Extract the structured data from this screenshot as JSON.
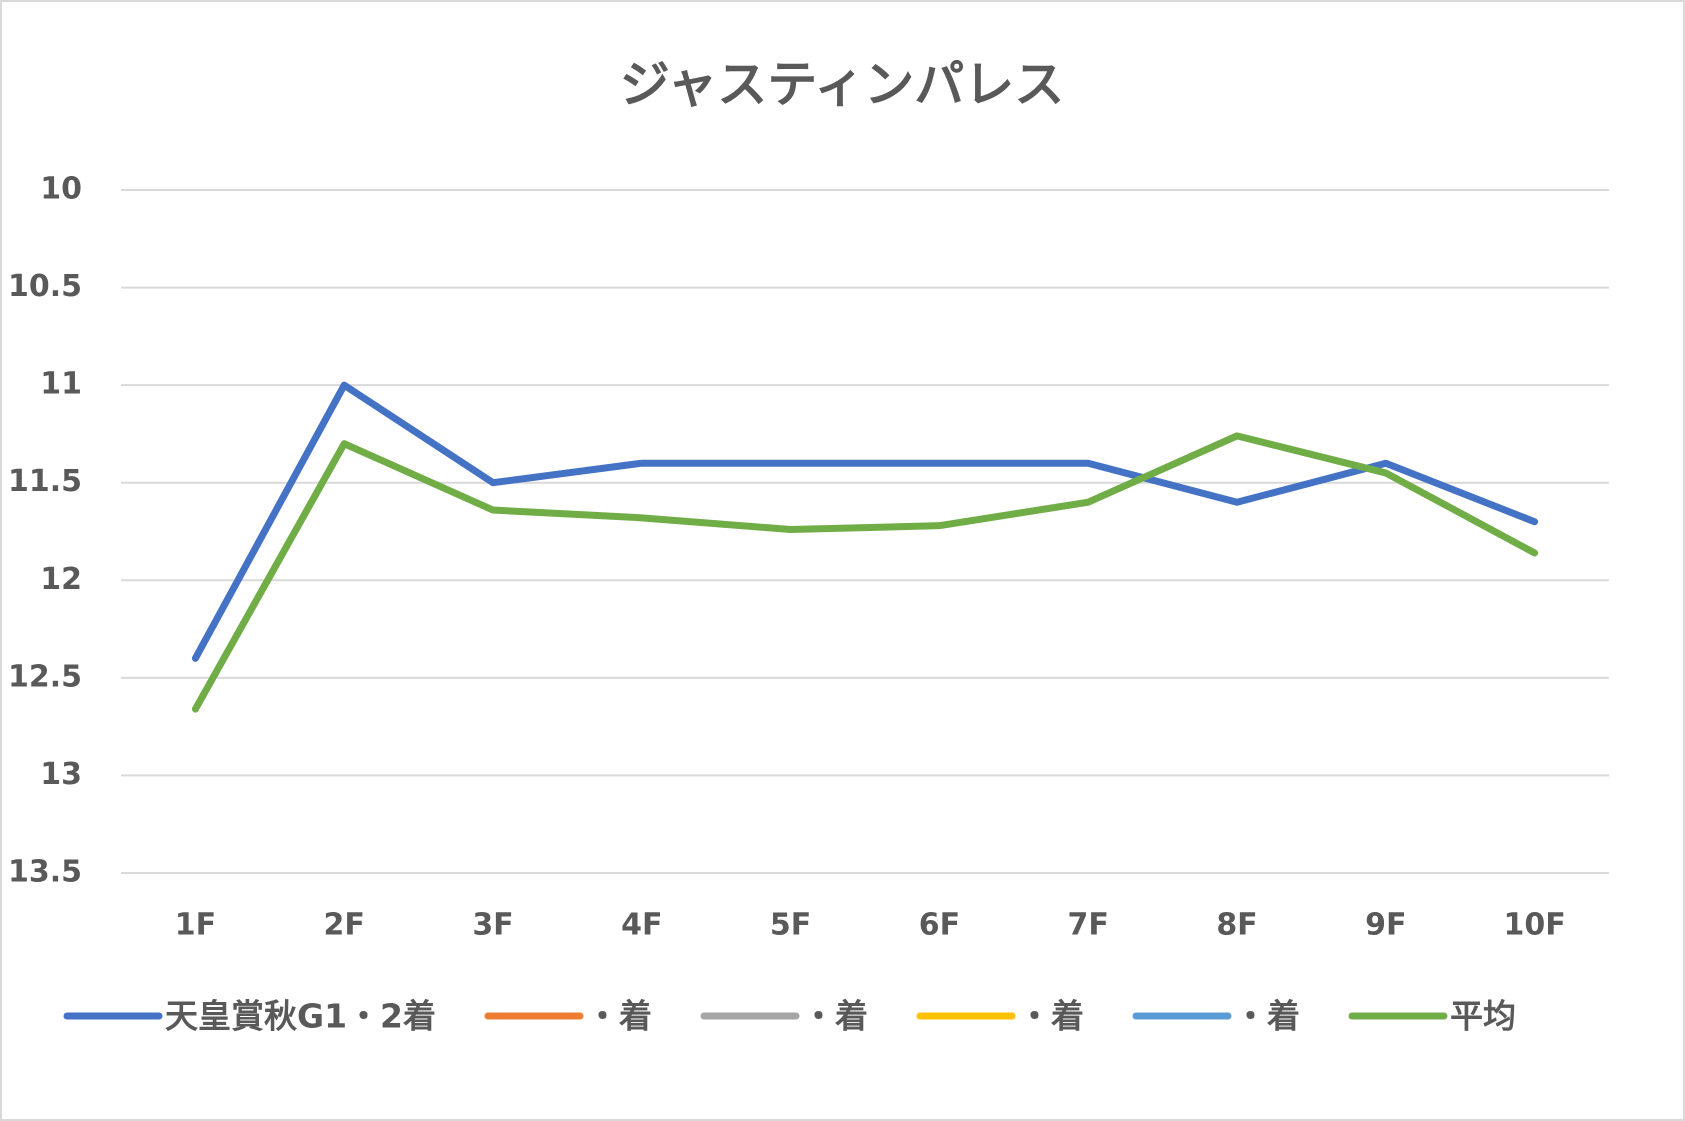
{
  "chart_data": {
    "type": "line",
    "title": "ジャスティンパレス",
    "categories": [
      "1F",
      "2F",
      "3F",
      "4F",
      "5F",
      "6F",
      "7F",
      "8F",
      "9F",
      "10F"
    ],
    "series": [
      {
        "name": "天皇賞秋G1・2着",
        "color": "#4472c4",
        "values": [
          12.4,
          11.0,
          11.5,
          11.4,
          11.4,
          11.4,
          11.4,
          11.6,
          11.4,
          11.7
        ]
      },
      {
        "name": "・着",
        "color": "#ed7d31",
        "values": [
          null,
          null,
          null,
          null,
          null,
          null,
          null,
          null,
          null,
          null
        ]
      },
      {
        "name": "・着",
        "color": "#a5a5a5",
        "values": [
          null,
          null,
          null,
          null,
          null,
          null,
          null,
          null,
          null,
          null
        ]
      },
      {
        "name": "・着",
        "color": "#ffc000",
        "values": [
          null,
          null,
          null,
          null,
          null,
          null,
          null,
          null,
          null,
          null
        ]
      },
      {
        "name": "・着",
        "color": "#5b9bd5",
        "values": [
          null,
          null,
          null,
          null,
          null,
          null,
          null,
          null,
          null,
          null
        ]
      },
      {
        "name": "平均",
        "color": "#70ad47",
        "values": [
          12.66,
          11.3,
          11.64,
          11.68,
          11.74,
          11.72,
          11.6,
          11.26,
          11.45,
          11.86
        ]
      }
    ],
    "ylim": [
      10,
      13.5
    ],
    "yticks": [
      10,
      10.5,
      11,
      11.5,
      12,
      12.5,
      13,
      13.5
    ],
    "y_reversed": true,
    "grid": true,
    "legend": "bottom"
  }
}
